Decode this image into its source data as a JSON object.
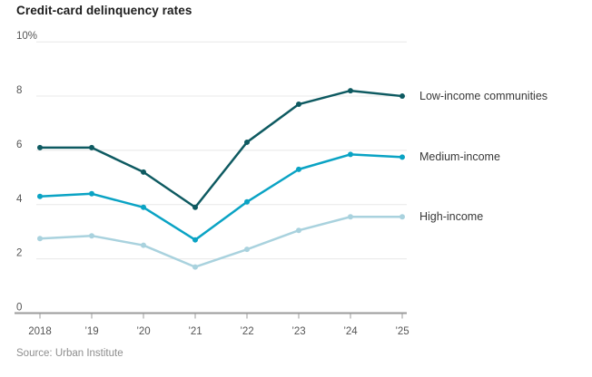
{
  "page": {
    "title": "Credit-card delinquency rates",
    "source": "Source: Urban Institute"
  },
  "colors": {
    "background": "#ffffff",
    "title_text": "#1c1c1c",
    "axis_line": "#9b9b9b",
    "tick_mark": "#9b9b9b",
    "axis_label_text": "#555555",
    "gridline": "#e8e8e8",
    "series_label_text": "#383838",
    "source_text": "#8e8e8e",
    "low_income": "#0e5a61",
    "medium_income": "#0aa3c4",
    "high_income": "#a9d2de"
  },
  "chart_data": {
    "type": "line",
    "title": "Credit-card delinquency rates",
    "xlabel": "",
    "ylabel": "",
    "x_categories": [
      "2018",
      "’19",
      "’20",
      "’21",
      "’22",
      "’23",
      "’24",
      "’25"
    ],
    "ylim": [
      0,
      10
    ],
    "y_ticks": [
      {
        "value": 0,
        "label": "0"
      },
      {
        "value": 2,
        "label": "2"
      },
      {
        "value": 4,
        "label": "4"
      },
      {
        "value": 6,
        "label": "6"
      },
      {
        "value": 8,
        "label": "8"
      },
      {
        "value": 10,
        "label": "10%"
      }
    ],
    "grid": "horizontal-only",
    "legend_position": "right-of-line-ends",
    "markers": true,
    "series": [
      {
        "name": "Low-income communities",
        "color": "#0e5a61",
        "values": [
          6.1,
          6.1,
          5.2,
          3.9,
          6.3,
          7.7,
          8.2,
          8.0
        ]
      },
      {
        "name": "Medium-income",
        "color": "#0aa3c4",
        "values": [
          4.3,
          4.4,
          3.9,
          2.7,
          4.1,
          5.3,
          5.85,
          5.75
        ]
      },
      {
        "name": "High-income",
        "color": "#a9d2de",
        "values": [
          2.75,
          2.85,
          2.5,
          1.7,
          2.35,
          3.05,
          3.55,
          3.55
        ]
      }
    ],
    "source": "Source: Urban Institute"
  }
}
